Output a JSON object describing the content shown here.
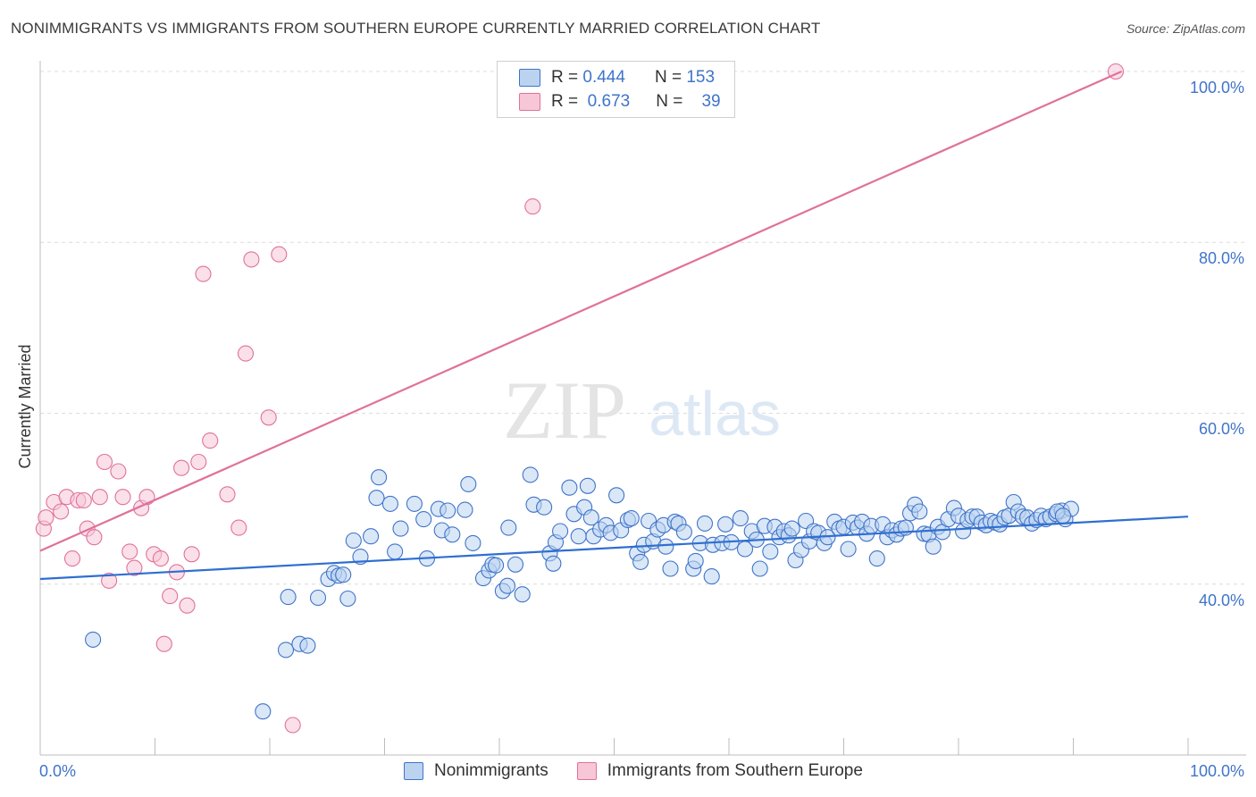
{
  "header": {
    "title": "NONIMMIGRANTS VS IMMIGRANTS FROM SOUTHERN EUROPE CURRENTLY MARRIED CORRELATION CHART",
    "source": "Source: ZipAtlas.com"
  },
  "colors": {
    "blue": "#3f74c9",
    "blue_line": "#2f6fd1",
    "blue_fill": "#bcd3f0",
    "pink_line": "#e0719a",
    "pink_fill": "#f7c7d7",
    "grid": "#dcdcdc"
  },
  "legend_top": {
    "rows": [
      {
        "r_label": "R =",
        "r_value": "0.444",
        "n_label": "N =",
        "n_value": "153"
      },
      {
        "r_label": "R =",
        "r_value": "0.673",
        "n_label": "N =",
        "n_value": "39"
      }
    ]
  },
  "watermark": {
    "zip": "ZIP",
    "atlas": "atlas"
  },
  "chart_data": {
    "type": "scatter",
    "title": "NONIMMIGRANTS VS IMMIGRANTS FROM SOUTHERN EUROPE CURRENTLY MARRIED CORRELATION CHART",
    "xlabel": "",
    "ylabel": "Currently Married",
    "xlim": [
      0,
      100
    ],
    "ylim": [
      20,
      100
    ],
    "x_tick_labels": [
      "0.0%",
      "100.0%"
    ],
    "y_ticks": [
      40,
      60,
      80,
      100
    ],
    "y_tick_labels": [
      "40.0%",
      "60.0%",
      "80.0%",
      "100.0%"
    ],
    "grid": true,
    "series": [
      {
        "name": "Nonimmigrants",
        "color": "#3f74c9",
        "r": 0.444,
        "n": 153,
        "trend": {
          "x": [
            0,
            100
          ],
          "y": [
            40.6,
            47.9
          ]
        },
        "points": [
          [
            4.6,
            33.5
          ],
          [
            19.4,
            25.1
          ],
          [
            21.4,
            32.3
          ],
          [
            21.6,
            38.5
          ],
          [
            22.6,
            33.0
          ],
          [
            23.3,
            32.8
          ],
          [
            24.2,
            38.4
          ],
          [
            25.1,
            40.6
          ],
          [
            25.6,
            41.3
          ],
          [
            26.0,
            41.0
          ],
          [
            26.4,
            41.1
          ],
          [
            26.8,
            38.3
          ],
          [
            27.3,
            45.1
          ],
          [
            27.9,
            43.2
          ],
          [
            28.8,
            45.6
          ],
          [
            29.3,
            50.1
          ],
          [
            29.5,
            52.5
          ],
          [
            30.5,
            49.4
          ],
          [
            31.4,
            46.5
          ],
          [
            30.9,
            43.8
          ],
          [
            32.6,
            49.4
          ],
          [
            33.4,
            47.6
          ],
          [
            33.7,
            43.0
          ],
          [
            34.7,
            48.8
          ],
          [
            35.0,
            46.3
          ],
          [
            35.5,
            48.6
          ],
          [
            35.9,
            45.8
          ],
          [
            37.0,
            48.7
          ],
          [
            37.3,
            51.7
          ],
          [
            37.7,
            44.8
          ],
          [
            38.6,
            40.7
          ],
          [
            39.1,
            41.6
          ],
          [
            39.4,
            42.3
          ],
          [
            39.7,
            42.2
          ],
          [
            40.3,
            39.2
          ],
          [
            40.7,
            39.8
          ],
          [
            40.8,
            46.6
          ],
          [
            41.4,
            42.3
          ],
          [
            42.0,
            38.8
          ],
          [
            42.7,
            52.8
          ],
          [
            43.0,
            49.3
          ],
          [
            43.9,
            49.0
          ],
          [
            44.4,
            43.6
          ],
          [
            44.7,
            42.4
          ],
          [
            44.9,
            44.9
          ],
          [
            45.3,
            46.2
          ],
          [
            46.1,
            51.3
          ],
          [
            46.5,
            48.2
          ],
          [
            46.9,
            45.6
          ],
          [
            47.4,
            49.0
          ],
          [
            47.7,
            51.5
          ],
          [
            48.0,
            47.8
          ],
          [
            48.2,
            45.6
          ],
          [
            48.8,
            46.4
          ],
          [
            49.3,
            46.9
          ],
          [
            49.7,
            46.0
          ],
          [
            50.2,
            50.4
          ],
          [
            50.6,
            46.3
          ],
          [
            51.2,
            47.5
          ],
          [
            51.5,
            47.7
          ],
          [
            52.0,
            43.6
          ],
          [
            52.3,
            42.6
          ],
          [
            52.6,
            44.6
          ],
          [
            53.0,
            47.4
          ],
          [
            53.4,
            45.0
          ],
          [
            53.8,
            46.4
          ],
          [
            54.3,
            46.9
          ],
          [
            54.5,
            44.4
          ],
          [
            54.9,
            41.8
          ],
          [
            55.3,
            47.3
          ],
          [
            55.6,
            47.1
          ],
          [
            56.1,
            46.1
          ],
          [
            56.9,
            41.8
          ],
          [
            57.1,
            42.7
          ],
          [
            57.5,
            44.8
          ],
          [
            57.9,
            47.1
          ],
          [
            58.5,
            40.9
          ],
          [
            58.6,
            44.6
          ],
          [
            59.4,
            44.8
          ],
          [
            59.7,
            47.0
          ],
          [
            60.2,
            44.9
          ],
          [
            61.0,
            47.7
          ],
          [
            61.4,
            44.1
          ],
          [
            62.0,
            46.2
          ],
          [
            62.4,
            45.2
          ],
          [
            62.7,
            41.8
          ],
          [
            63.1,
            46.8
          ],
          [
            63.6,
            43.8
          ],
          [
            64.0,
            46.7
          ],
          [
            64.4,
            45.5
          ],
          [
            64.8,
            46.2
          ],
          [
            65.2,
            45.7
          ],
          [
            65.5,
            46.5
          ],
          [
            65.8,
            42.8
          ],
          [
            66.3,
            44.0
          ],
          [
            66.7,
            47.4
          ],
          [
            67.0,
            45.0
          ],
          [
            67.4,
            46.2
          ],
          [
            67.8,
            46.0
          ],
          [
            68.3,
            44.8
          ],
          [
            68.6,
            45.5
          ],
          [
            69.2,
            47.3
          ],
          [
            69.6,
            46.5
          ],
          [
            70.0,
            46.7
          ],
          [
            70.4,
            44.1
          ],
          [
            70.8,
            47.2
          ],
          [
            71.2,
            46.6
          ],
          [
            71.6,
            47.3
          ],
          [
            72.0,
            45.9
          ],
          [
            72.4,
            46.8
          ],
          [
            72.9,
            43.0
          ],
          [
            73.4,
            47.0
          ],
          [
            73.8,
            45.5
          ],
          [
            74.2,
            46.3
          ],
          [
            74.6,
            45.8
          ],
          [
            75.0,
            46.5
          ],
          [
            75.4,
            46.6
          ],
          [
            75.8,
            48.3
          ],
          [
            76.2,
            49.3
          ],
          [
            76.6,
            48.5
          ],
          [
            77.0,
            45.9
          ],
          [
            77.4,
            45.8
          ],
          [
            77.8,
            44.4
          ],
          [
            78.2,
            46.7
          ],
          [
            78.6,
            46.1
          ],
          [
            79.1,
            47.6
          ],
          [
            79.6,
            48.9
          ],
          [
            80.0,
            48.0
          ],
          [
            80.4,
            46.2
          ],
          [
            80.8,
            47.5
          ],
          [
            81.2,
            47.9
          ],
          [
            81.6,
            47.9
          ],
          [
            82.0,
            47.2
          ],
          [
            82.4,
            46.9
          ],
          [
            82.8,
            47.4
          ],
          [
            83.2,
            47.2
          ],
          [
            83.6,
            47.0
          ],
          [
            84.0,
            47.8
          ],
          [
            84.4,
            48.0
          ],
          [
            84.8,
            49.6
          ],
          [
            85.2,
            48.5
          ],
          [
            85.6,
            47.9
          ],
          [
            86.0,
            47.8
          ],
          [
            86.4,
            47.1
          ],
          [
            86.8,
            47.5
          ],
          [
            87.2,
            48.0
          ],
          [
            87.6,
            47.6
          ],
          [
            88.0,
            47.9
          ],
          [
            88.5,
            48.2
          ],
          [
            89.0,
            48.6
          ],
          [
            89.3,
            47.6
          ],
          [
            89.8,
            48.8
          ],
          [
            88.6,
            48.5
          ],
          [
            89.1,
            48.0
          ]
        ]
      },
      {
        "name": "Immigrants from Southern Europe",
        "color": "#e0719a",
        "r": 0.673,
        "n": 39,
        "trend": {
          "x": [
            0,
            94.2
          ],
          "y": [
            43.9,
            100
          ]
        },
        "points": [
          [
            0.3,
            46.5
          ],
          [
            0.5,
            47.8
          ],
          [
            1.2,
            49.6
          ],
          [
            1.8,
            48.5
          ],
          [
            2.3,
            50.2
          ],
          [
            2.8,
            43.0
          ],
          [
            3.3,
            49.8
          ],
          [
            3.8,
            49.8
          ],
          [
            4.1,
            46.5
          ],
          [
            4.7,
            45.5
          ],
          [
            5.2,
            50.2
          ],
          [
            5.6,
            54.3
          ],
          [
            6.0,
            40.4
          ],
          [
            6.8,
            53.2
          ],
          [
            7.2,
            50.2
          ],
          [
            7.8,
            43.8
          ],
          [
            8.2,
            41.9
          ],
          [
            8.8,
            48.9
          ],
          [
            9.3,
            50.2
          ],
          [
            9.9,
            43.5
          ],
          [
            10.5,
            43.0
          ],
          [
            10.8,
            33.0
          ],
          [
            11.3,
            38.6
          ],
          [
            11.9,
            41.4
          ],
          [
            12.3,
            53.6
          ],
          [
            12.8,
            37.5
          ],
          [
            13.2,
            43.5
          ],
          [
            13.8,
            54.3
          ],
          [
            14.2,
            76.3
          ],
          [
            14.8,
            56.8
          ],
          [
            16.3,
            50.5
          ],
          [
            17.3,
            46.6
          ],
          [
            17.9,
            67.0
          ],
          [
            18.4,
            78.0
          ],
          [
            19.9,
            59.5
          ],
          [
            20.8,
            78.6
          ],
          [
            22.0,
            23.5
          ],
          [
            42.9,
            84.2
          ],
          [
            93.7,
            100.0
          ]
        ]
      }
    ]
  }
}
